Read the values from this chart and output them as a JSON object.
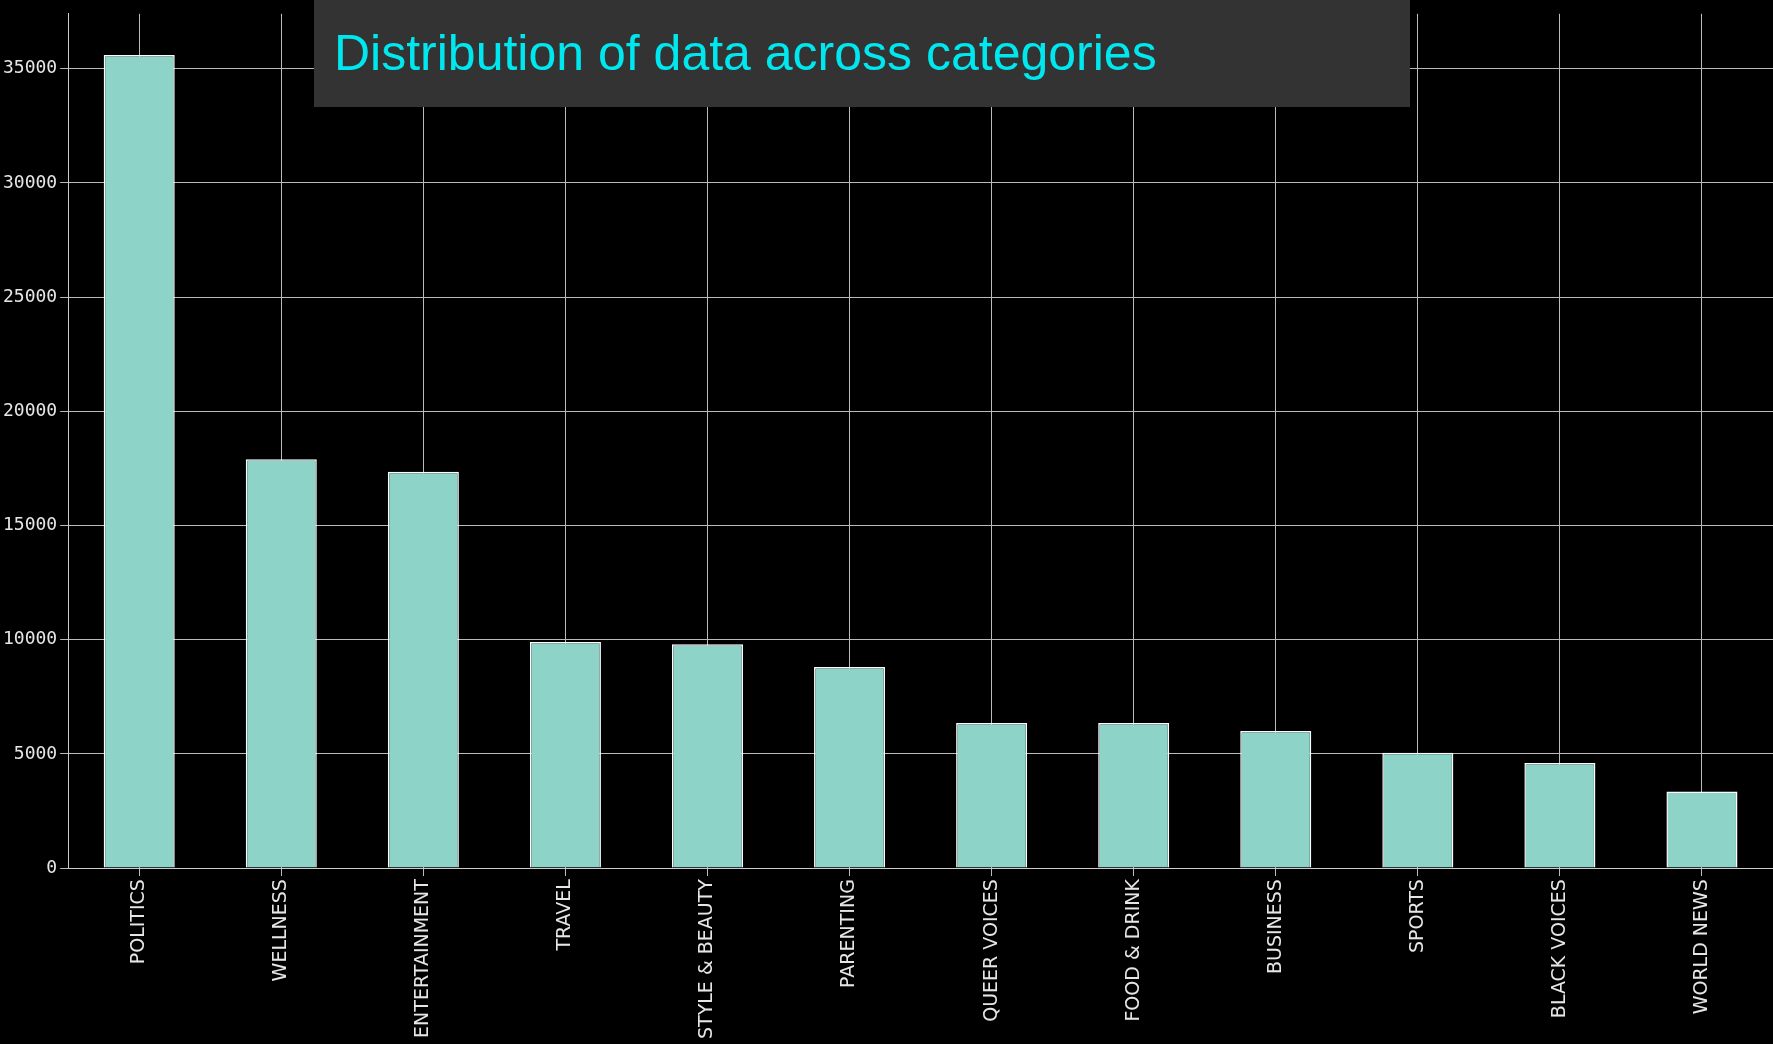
{
  "chart_data": {
    "type": "bar",
    "title": "Distribution of data across categories",
    "categories": [
      "POLITICS",
      "WELLNESS",
      "ENTERTAINMENT",
      "TRAVEL",
      "STYLE & BEAUTY",
      "PARENTING",
      "QUEER VOICES",
      "FOOD & DRINK",
      "BUSINESS",
      "SPORTS",
      "BLACK VOICES",
      "WORLD NEWS"
    ],
    "values": [
      35600,
      17900,
      17350,
      9900,
      9800,
      8800,
      6350,
      6350,
      6000,
      5050,
      4600,
      3350
    ],
    "color": "#8dd3c7",
    "ylim": [
      0,
      37400
    ],
    "yticks": [
      0,
      5000,
      10000,
      15000,
      20000,
      25000,
      30000,
      35000
    ],
    "grid": true,
    "legend": false
  }
}
